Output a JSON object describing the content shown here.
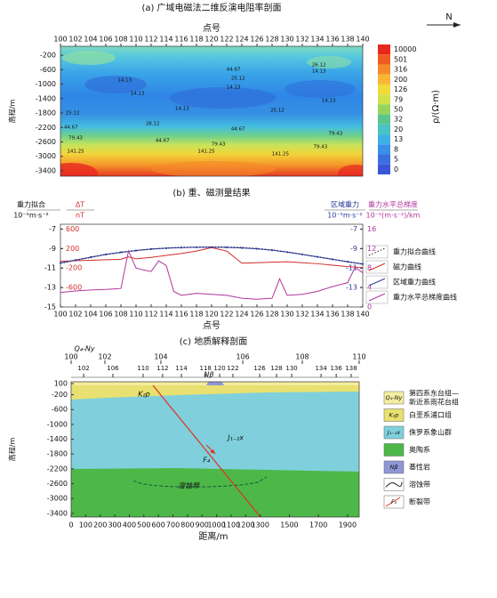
{
  "chart_data": [
    {
      "type": "contour",
      "title": "(a) 广域电磁法二维反演电阻率剖面",
      "north": "N",
      "xlabel": "点号",
      "ylabel": "高程/m",
      "xlim": [
        100,
        140
      ],
      "xticks": [
        100,
        102,
        104,
        106,
        108,
        110,
        112,
        114,
        116,
        118,
        120,
        122,
        124,
        126,
        128,
        130,
        132,
        134,
        136,
        138,
        140
      ],
      "ylim": [
        -3550,
        50
      ],
      "yticks": [
        -200,
        -600,
        -1000,
        -1400,
        -1800,
        -2200,
        -2600,
        -3000,
        -3400
      ],
      "colorbar": {
        "label": "ρ/(Ω·m)",
        "ticks": [
          "10000",
          "501",
          "316",
          "200",
          "126",
          "79",
          "50",
          "32",
          "20",
          "13",
          "8",
          "5",
          "0"
        ],
        "colors": [
          "#e8281e",
          "#f05a22",
          "#f58a2a",
          "#f7b733",
          "#f3d93a",
          "#cfe24a",
          "#95d45e",
          "#5cc58a",
          "#49c3c3",
          "#3fb0e6",
          "#3a8fe8",
          "#3a6fe0",
          "#3a55d8"
        ]
      },
      "annotations": [
        {
          "text": "26.12",
          "x": 134.2,
          "y": -470
        },
        {
          "text": "14.13",
          "x": 134.2,
          "y": -640
        },
        {
          "text": "44.67",
          "x": 122.9,
          "y": -590
        },
        {
          "text": "25.12",
          "x": 123.5,
          "y": -840
        },
        {
          "text": "14.13",
          "x": 108.5,
          "y": -890
        },
        {
          "text": "14.13",
          "x": 122.9,
          "y": -1090
        },
        {
          "text": "14.13",
          "x": 110.2,
          "y": -1260
        },
        {
          "text": "14.13",
          "x": 135.5,
          "y": -1450
        },
        {
          "text": "14.13",
          "x": 116.1,
          "y": -1680
        },
        {
          "text": "25.12",
          "x": 101.6,
          "y": -1800
        },
        {
          "text": "25.12",
          "x": 128.7,
          "y": -1730
        },
        {
          "text": "28.12",
          "x": 112.2,
          "y": -2100
        },
        {
          "text": "44.67",
          "x": 101.4,
          "y": -2190
        },
        {
          "text": "44.67",
          "x": 123.5,
          "y": -2240
        },
        {
          "text": "79.43",
          "x": 136.4,
          "y": -2370
        },
        {
          "text": "79.43",
          "x": 102,
          "y": -2490
        },
        {
          "text": "44.67",
          "x": 113.5,
          "y": -2560
        },
        {
          "text": "79.43",
          "x": 120.9,
          "y": -2660
        },
        {
          "text": "79.43",
          "x": 134.4,
          "y": -2740
        },
        {
          "text": "141.25",
          "x": 102,
          "y": -2860
        },
        {
          "text": "141.25",
          "x": 119.3,
          "y": -2860
        },
        {
          "text": "141.25",
          "x": 129.1,
          "y": -2930
        }
      ]
    },
    {
      "type": "line",
      "title": "(b) 重、磁测量结果",
      "xlabel": "点号",
      "y_title": "重力拟合",
      "y_unit": "10⁻⁵m·s⁻²",
      "dt_title": "ΔT",
      "dt_unit": "nT",
      "y2_title": "区域重力",
      "y2_unit": "10⁻⁵m·s⁻²",
      "grad_title": "重力水平总梯度",
      "grad_unit": "10⁻⁵(m·s⁻²)/km",
      "xlim": [
        100,
        140
      ],
      "xticks": [
        100,
        102,
        104,
        106,
        108,
        110,
        112,
        114,
        116,
        118,
        120,
        122,
        124,
        126,
        128,
        130,
        132,
        134,
        136,
        138,
        140
      ],
      "ylim": [
        -15,
        -6.5
      ],
      "yticks": [
        -7,
        -9,
        -11,
        -13,
        -15
      ],
      "dtlim": [
        -1000,
        700
      ],
      "dtticks": [
        600,
        200,
        -200,
        -600
      ],
      "y2lim": [
        -15,
        -6.5
      ],
      "y2ticks": [
        -7,
        -9,
        -11,
        -13
      ],
      "gradlim": [
        0,
        17
      ],
      "gradticks": [
        16,
        12,
        8,
        4,
        0
      ],
      "series": [
        {
          "name": "重力拟合曲线",
          "color": "#222222",
          "axis": "y",
          "x": [
            100,
            102,
            104,
            106,
            108,
            110,
            112,
            114,
            116,
            118,
            120,
            122,
            124,
            126,
            128,
            130,
            132,
            134,
            136,
            138,
            140
          ],
          "values": [
            -10.5,
            -10.2,
            -9.9,
            -9.6,
            -9.4,
            -9.2,
            -9.05,
            -8.95,
            -8.88,
            -8.85,
            -8.83,
            -8.85,
            -8.9,
            -9.0,
            -9.15,
            -9.35,
            -9.6,
            -9.85,
            -10.1,
            -10.35,
            -10.6
          ]
        },
        {
          "name": "磁力曲线",
          "color": "#d62c2c",
          "axis": "dt",
          "x": [
            100,
            102,
            104,
            106,
            108,
            109,
            110,
            112,
            114,
            116,
            118,
            120,
            122,
            124,
            126,
            128,
            130,
            132,
            134,
            136,
            138,
            140
          ],
          "values": [
            -60,
            -50,
            -40,
            -30,
            -20,
            30,
            -10,
            20,
            60,
            100,
            150,
            220,
            150,
            -100,
            -90,
            -80,
            -70,
            -90,
            -110,
            -140,
            -170,
            -190
          ]
        },
        {
          "name": "区域重力曲线",
          "color": "#2b3a9a",
          "axis": "y2",
          "x": [
            100,
            102,
            104,
            106,
            108,
            110,
            112,
            114,
            116,
            118,
            120,
            122,
            124,
            126,
            128,
            130,
            132,
            134,
            136,
            138,
            140
          ],
          "values": [
            -10.48,
            -10.18,
            -9.88,
            -9.6,
            -9.38,
            -9.2,
            -9.05,
            -8.96,
            -8.9,
            -8.87,
            -8.86,
            -8.88,
            -8.93,
            -9.02,
            -9.16,
            -9.36,
            -9.6,
            -9.85,
            -10.1,
            -10.35,
            -10.58
          ]
        },
        {
          "name": "重力水平总梯度曲线",
          "color": "#b0359e",
          "axis": "grad",
          "x": [
            100,
            102,
            104,
            106,
            108,
            109,
            110,
            111,
            112,
            113,
            114,
            115,
            116,
            118,
            120,
            122,
            124,
            126,
            128,
            129,
            130,
            132,
            134,
            136,
            138,
            139,
            140
          ],
          "values": [
            3.0,
            3.3,
            3.5,
            3.6,
            3.8,
            11.5,
            8.0,
            7.6,
            7.3,
            9.5,
            8.5,
            3.2,
            2.4,
            2.8,
            2.6,
            2.4,
            1.8,
            1.6,
            1.8,
            5.8,
            2.4,
            2.6,
            3.2,
            4.2,
            5.0,
            8.2,
            7.0
          ]
        }
      ]
    },
    {
      "type": "section",
      "title": "(c) 地质解释剖面",
      "xlabel": "距离/m",
      "ylabel": "高程/m",
      "xlim": [
        0,
        1980
      ],
      "xticks": [
        0,
        100,
        200,
        300,
        400,
        500,
        600,
        700,
        800,
        900,
        1000,
        1100,
        1200,
        1300,
        1500,
        1700,
        1900
      ],
      "ylim": [
        -3500,
        150
      ],
      "yticks": [
        100,
        -200,
        -600,
        -1000,
        -1400,
        -1800,
        -2200,
        -2600,
        -3000,
        -3400
      ],
      "top_ticks_upper": [
        {
          "value": 0,
          "label": "100"
        },
        {
          "value": 232,
          "label": "102"
        },
        {
          "value": 617,
          "label": "104"
        },
        {
          "value": 1180,
          "label": "106"
        },
        {
          "value": 1589,
          "label": "108"
        },
        {
          "value": 1980,
          "label": "110"
        }
      ],
      "top_ticks_lower": [
        {
          "value": 86,
          "label": "102"
        },
        {
          "value": 287,
          "label": "106"
        },
        {
          "value": 495,
          "label": "110"
        },
        {
          "value": 629,
          "label": "112"
        },
        {
          "value": 758,
          "label": "114"
        },
        {
          "value": 924,
          "label": "118"
        },
        {
          "value": 1021,
          "label": "120"
        },
        {
          "value": 1112,
          "label": "122"
        },
        {
          "value": 1296,
          "label": "126"
        },
        {
          "value": 1412,
          "label": "128"
        },
        {
          "value": 1516,
          "label": "130"
        },
        {
          "value": 1718,
          "label": "134"
        },
        {
          "value": 1822,
          "label": "136"
        },
        {
          "value": 1925,
          "label": "138"
        }
      ],
      "annotations": [
        {
          "text": "Q₄-Ny",
          "x": 92,
          "y": 1040
        },
        {
          "text": "Nβ",
          "x": 947,
          "y": 340
        },
        {
          "text": "K₂p",
          "x": 501,
          "y": -190
        },
        {
          "text": "J₁₋₂x",
          "x": 1131,
          "y": -1360
        },
        {
          "text": "F₄",
          "x": 930,
          "y": -1960
        },
        {
          "text": "溶蚀带",
          "x": 807,
          "y": -2660
        }
      ],
      "legend": [
        {
          "symbol": "Q₄-Ny",
          "label": [
            "第四系东台组—",
            "新近系雨花台组"
          ],
          "color": "#f3eea0"
        },
        {
          "symbol": "K₂p",
          "label": [
            "白垩系浦口组"
          ],
          "color": "#e8e070"
        },
        {
          "symbol": "J₁₋₂x",
          "label": [
            "侏罗系象山群"
          ],
          "color": "#7fd0dc"
        },
        {
          "label": [
            "奥陶系"
          ],
          "color": "#4db848"
        },
        {
          "symbol": "Nβ",
          "label": [
            "基性岩"
          ],
          "color": "#8f97d6"
        },
        {
          "label": [
            "溶蚀带"
          ],
          "color": "#ffffff"
        },
        {
          "symbol": "F₃",
          "label": [
            "断裂带"
          ],
          "color": "#ffffff"
        }
      ]
    }
  ]
}
